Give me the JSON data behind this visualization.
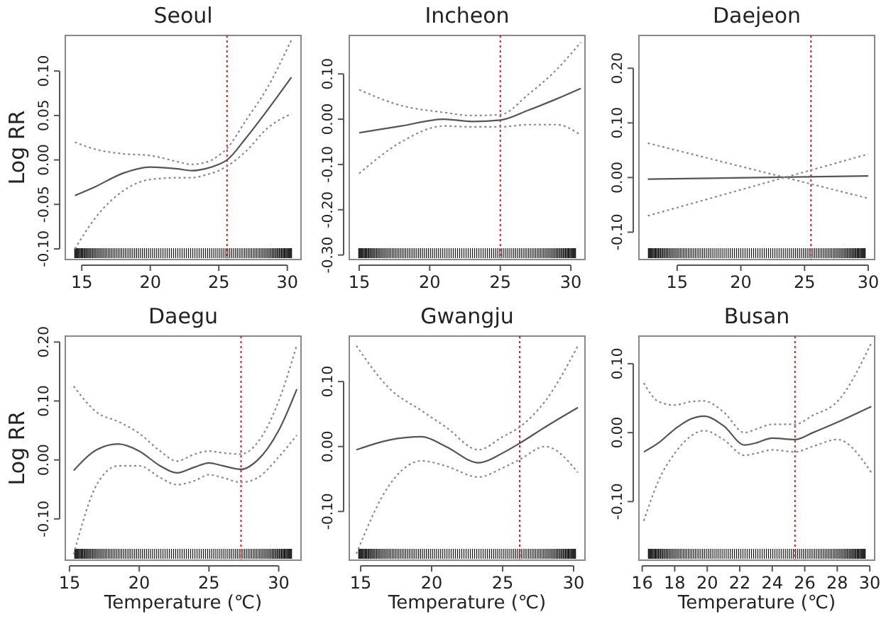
{
  "chart_data": [
    {
      "type": "line",
      "title": "Seoul",
      "ylabel": "Log RR",
      "xlim": [
        13.8,
        31
      ],
      "xticks": [
        15,
        20,
        25,
        30
      ],
      "ylim": [
        -0.112,
        0.14
      ],
      "yticks": [
        {
          "value": -0.1,
          "label": "-0.10"
        },
        {
          "value": -0.05,
          "label": "-0.05"
        },
        {
          "value": 0,
          "label": "0.00"
        },
        {
          "value": 0.05,
          "label": "0.05"
        },
        {
          "value": 0.1,
          "label": "0.10"
        }
      ],
      "x": [
        14.5,
        16,
        18,
        20,
        22,
        23,
        24,
        25,
        25.6,
        27,
        28.5,
        30.3
      ],
      "series": [
        {
          "color": "#555555",
          "values": [
            -0.04,
            -0.03,
            -0.015,
            -0.008,
            -0.01,
            -0.012,
            -0.01,
            -0.005,
            0,
            0.025,
            0.055,
            0.093
          ]
        },
        {
          "color": "#8a8a8a",
          "line_style": "dotted",
          "values": [
            -0.1,
            -0.065,
            -0.035,
            -0.022,
            -0.02,
            -0.02,
            -0.017,
            -0.012,
            -0.007,
            0.01,
            0.035,
            0.052
          ]
        },
        {
          "color": "#8a8a8a",
          "line_style": "dotted",
          "values": [
            0.02,
            0.012,
            0.007,
            0.005,
            -0.002,
            -0.005,
            -0.003,
            0.005,
            0.013,
            0.045,
            0.08,
            0.135
          ]
        }
      ],
      "ref_lines": [
        {
          "axis": "x",
          "value": 25.6,
          "color": "#e8141c",
          "line_style": "dotted"
        }
      ]
    },
    {
      "type": "line",
      "title": "Incheon",
      "xlim": [
        14.3,
        31
      ],
      "xticks": [
        15,
        20,
        25,
        30
      ],
      "ylim": [
        -0.31,
        0.185
      ],
      "yticks": [
        {
          "value": -0.3,
          "label": "-0.30"
        },
        {
          "value": -0.2,
          "label": "-0.20"
        },
        {
          "value": -0.1,
          "label": "-0.10"
        },
        {
          "value": 0,
          "label": "0.00"
        },
        {
          "value": 0.1,
          "label": "0.10"
        }
      ],
      "x": [
        15,
        18,
        21,
        23,
        25,
        27,
        29,
        30.7
      ],
      "series": [
        {
          "color": "#555555",
          "values": [
            -0.03,
            -0.015,
            0,
            -0.005,
            -0.002,
            0.02,
            0.045,
            0.068
          ]
        },
        {
          "color": "#8a8a8a",
          "line_style": "dotted",
          "values": [
            -0.12,
            -0.05,
            -0.015,
            -0.017,
            -0.017,
            -0.012,
            -0.012,
            -0.035
          ]
        },
        {
          "color": "#8a8a8a",
          "line_style": "dotted",
          "values": [
            0.065,
            0.03,
            0.015,
            0.008,
            0.01,
            0.055,
            0.11,
            0.17
          ]
        }
      ],
      "ref_lines": [
        {
          "axis": "x",
          "value": 25,
          "color": "#e8141c",
          "line_style": "dotted"
        }
      ]
    },
    {
      "type": "line",
      "title": "Daejeon",
      "xlim": [
        12,
        30.5
      ],
      "xticks": [
        15,
        20,
        25,
        30
      ],
      "ylim": [
        -0.15,
        0.26
      ],
      "yticks": [
        {
          "value": -0.1,
          "label": "-0.10"
        },
        {
          "value": 0,
          "label": "0.00"
        },
        {
          "value": 0.1,
          "label": "0.10"
        },
        {
          "value": 0.2,
          "label": "0.20"
        }
      ],
      "x": [
        12.7,
        30
      ],
      "series": [
        {
          "color": "#555555",
          "values": [
            -0.003,
            0.003
          ]
        },
        {
          "color": "#8a8a8a",
          "line_style": "dotted",
          "values": [
            -0.07,
            0.043
          ]
        },
        {
          "color": "#8a8a8a",
          "line_style": "dotted",
          "values": [
            0.063,
            -0.038
          ]
        }
      ],
      "ref_lines": [
        {
          "axis": "x",
          "value": 25.5,
          "color": "#e8141c",
          "line_style": "dotted"
        }
      ]
    },
    {
      "type": "line",
      "title": "Daegu",
      "ylabel": "Log RR",
      "xlabel": "Temperature (℃)",
      "xlim": [
        14.7,
        31.6
      ],
      "xticks": [
        15,
        20,
        25,
        30
      ],
      "ylim": [
        -0.17,
        0.21
      ],
      "yticks": [
        {
          "value": -0.1,
          "label": "-0.10"
        },
        {
          "value": 0,
          "label": "0.00"
        },
        {
          "value": 0.1,
          "label": "0.10"
        },
        {
          "value": 0.2,
          "label": "0.20"
        }
      ],
      "x": [
        15.3,
        17,
        18.5,
        20,
        21.5,
        22.7,
        24,
        25,
        26,
        27.3,
        28.5,
        30,
        31.3
      ],
      "series": [
        {
          "color": "#555555",
          "values": [
            -0.018,
            0.018,
            0.027,
            0.015,
            -0.01,
            -0.022,
            -0.012,
            -0.005,
            -0.01,
            -0.016,
            0,
            0.05,
            0.12
          ]
        },
        {
          "color": "#8a8a8a",
          "line_style": "dotted",
          "values": [
            -0.16,
            -0.04,
            -0.01,
            -0.01,
            -0.03,
            -0.042,
            -0.035,
            -0.025,
            -0.03,
            -0.038,
            -0.03,
            0.005,
            0.042
          ]
        },
        {
          "color": "#8a8a8a",
          "line_style": "dotted",
          "values": [
            0.125,
            0.08,
            0.065,
            0.045,
            0.015,
            -0.002,
            0.01,
            0.015,
            0.012,
            0.01,
            0.03,
            0.1,
            0.195
          ]
        }
      ],
      "ref_lines": [
        {
          "axis": "x",
          "value": 27.3,
          "color": "#e8141c",
          "line_style": "dotted"
        }
      ]
    },
    {
      "type": "line",
      "title": "Gwangju",
      "xlabel": "Temperature (℃)",
      "xlim": [
        14.2,
        30.8
      ],
      "xticks": [
        15,
        20,
        25,
        30
      ],
      "ylim": [
        -0.175,
        0.17
      ],
      "yticks": [
        {
          "value": -0.1,
          "label": "-0.10"
        },
        {
          "value": 0,
          "label": "0.00"
        },
        {
          "value": 0.1,
          "label": "0.10"
        }
      ],
      "x": [
        14.7,
        17,
        19.3,
        21,
        23.3,
        25,
        26.2,
        28,
        30.3
      ],
      "series": [
        {
          "color": "#555555",
          "values": [
            -0.005,
            0.01,
            0.015,
            0,
            -0.025,
            -0.01,
            0.005,
            0.03,
            0.06
          ]
        },
        {
          "color": "#8a8a8a",
          "line_style": "dotted",
          "values": [
            -0.165,
            -0.06,
            -0.022,
            -0.03,
            -0.047,
            -0.033,
            -0.02,
            0,
            -0.04
          ]
        },
        {
          "color": "#8a8a8a",
          "line_style": "dotted",
          "values": [
            0.155,
            0.09,
            0.055,
            0.03,
            -0.005,
            0.015,
            0.03,
            0.07,
            0.155
          ]
        }
      ],
      "ref_lines": [
        {
          "axis": "x",
          "value": 26.2,
          "color": "#e8141c",
          "line_style": "dotted"
        }
      ]
    },
    {
      "type": "line",
      "title": "Busan",
      "xlabel": "Temperature (℃)",
      "xlim": [
        15.8,
        30.3
      ],
      "xticks": [
        16,
        18,
        20,
        22,
        24,
        26,
        28,
        30
      ],
      "ylim": [
        -0.185,
        0.14
      ],
      "yticks": [
        {
          "value": -0.1,
          "label": "-0.10"
        },
        {
          "value": 0,
          "label": "0.00"
        },
        {
          "value": 0.1,
          "label": "0.10"
        }
      ],
      "x": [
        16.1,
        17,
        18,
        19,
        19.8,
        21,
        22.3,
        23,
        24,
        25.4,
        26.5,
        28,
        30.1
      ],
      "series": [
        {
          "color": "#555555",
          "values": [
            -0.028,
            -0.015,
            0.005,
            0.02,
            0.024,
            0.01,
            -0.018,
            -0.015,
            -0.008,
            -0.01,
            0,
            0.015,
            0.038
          ]
        },
        {
          "color": "#8a8a8a",
          "line_style": "dotted",
          "values": [
            -0.128,
            -0.07,
            -0.03,
            -0.005,
            0.003,
            -0.01,
            -0.033,
            -0.03,
            -0.025,
            -0.028,
            -0.02,
            -0.01,
            -0.058
          ]
        },
        {
          "color": "#8a8a8a",
          "line_style": "dotted",
          "values": [
            0.072,
            0.045,
            0.04,
            0.045,
            0.046,
            0.03,
            0,
            0.005,
            0.012,
            0.012,
            0.025,
            0.045,
            0.13
          ]
        }
      ],
      "ref_lines": [
        {
          "axis": "x",
          "value": 25.4,
          "color": "#e8141c",
          "line_style": "dotted"
        }
      ]
    }
  ]
}
